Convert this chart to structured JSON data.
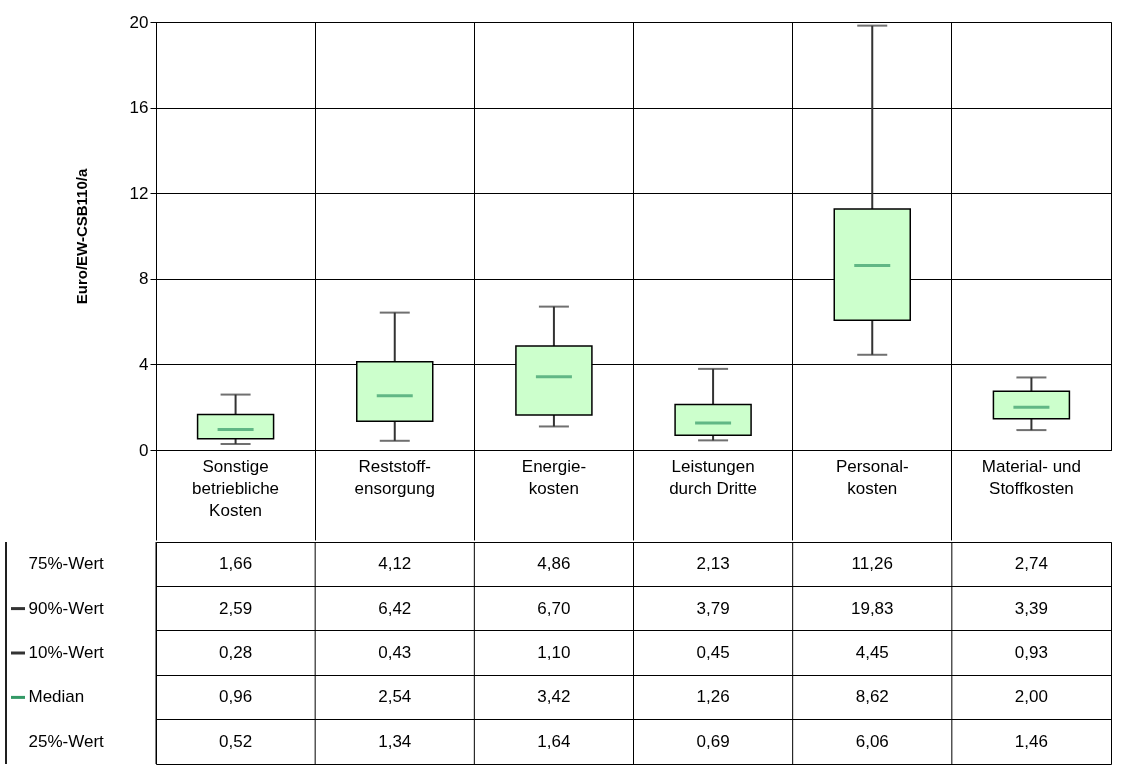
{
  "chart_data": {
    "type": "box",
    "ylabel": "Euro/EW-CSB110/a",
    "categories": [
      "Sonstige\nbetriebliche\nKosten",
      "Reststoff-\nensorgung",
      "Energie-\nkosten",
      "Leistungen\ndurch Dritte",
      "Personal-\nkosten",
      "Material- und\nStoffkosten"
    ],
    "series": [
      {
        "color": "#ccffcc",
        "boxes": [
          {
            "low": 0.28,
            "q1": 0.52,
            "median": 0.96,
            "q3": 1.66,
            "high": 2.59
          },
          {
            "low": 0.43,
            "q1": 1.34,
            "median": 2.54,
            "q3": 4.12,
            "high": 6.42
          },
          {
            "low": 1.1,
            "q1": 1.64,
            "median": 3.42,
            "q3": 4.86,
            "high": 6.7
          },
          {
            "low": 0.45,
            "q1": 0.69,
            "median": 1.26,
            "q3": 2.13,
            "high": 3.79
          },
          {
            "low": 4.45,
            "q1": 6.06,
            "median": 8.62,
            "q3": 11.26,
            "high": 19.83
          },
          {
            "low": 0.93,
            "q1": 1.46,
            "median": 2.0,
            "q3": 2.74,
            "high": 3.39
          }
        ],
        "value_labels": [
          [
            "1,66",
            "2,59",
            "0,28",
            "0,96",
            "0,52"
          ],
          [
            "4,12",
            "6,42",
            "0,43",
            "2,54",
            "1,34"
          ],
          [
            "4,86",
            "6,70",
            "1,10",
            "3,42",
            "1,64"
          ],
          [
            "2,13",
            "3,79",
            "0,45",
            "1,26",
            "0,69"
          ],
          [
            "11,26",
            "19,83",
            "4,45",
            "8,62",
            "6,06"
          ],
          [
            "2,74",
            "3,39",
            "0,93",
            "2,00",
            "1,46"
          ]
        ]
      }
    ],
    "ylim": [
      0,
      20
    ],
    "yticks": [
      0,
      4,
      8,
      12,
      16,
      20
    ],
    "grid": true,
    "annotations": [
      "75%-Wert",
      "90%-Wert",
      "10%-Wert",
      "Median",
      "25%-Wert"
    ]
  }
}
